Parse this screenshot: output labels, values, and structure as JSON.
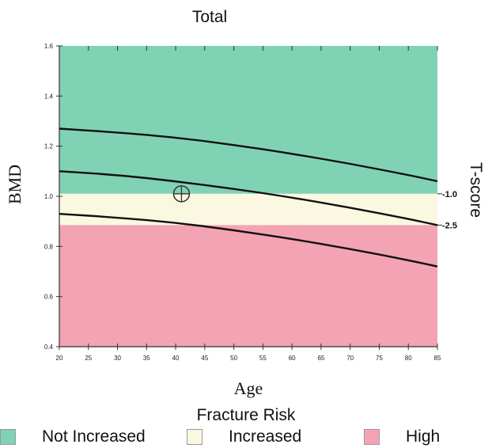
{
  "chart_data": {
    "type": "line",
    "title": "Total",
    "xlabel": "Age",
    "ylabel": "BMD",
    "y2label": "T-score",
    "xlim": [
      20,
      85
    ],
    "ylim": [
      0.4,
      1.6
    ],
    "x_ticks": [
      20,
      25,
      30,
      35,
      40,
      45,
      50,
      55,
      60,
      65,
      70,
      75,
      80,
      85
    ],
    "y_ticks": [
      "0.4",
      "0.6",
      "0.8",
      "1.0",
      "1.2",
      "1.4",
      "1.6"
    ],
    "bands": [
      {
        "label": "Not Increased",
        "from": 1.01,
        "to": 1.6,
        "color": "#7fd3b4"
      },
      {
        "label": "Increased",
        "from": 0.885,
        "to": 1.01,
        "color": "#fbf8e2"
      },
      {
        "label": "High",
        "from": 0.4,
        "to": 0.885,
        "color": "#f4a3b4"
      }
    ],
    "tscore_labels": [
      {
        "label": "-1.0",
        "y": 1.01
      },
      {
        "label": "-2.5",
        "y": 0.885
      }
    ],
    "series": [
      {
        "x": [
          20,
          30,
          40,
          50,
          60,
          70,
          80,
          85
        ],
        "values": [
          1.27,
          1.255,
          1.235,
          1.205,
          1.17,
          1.13,
          1.085,
          1.06
        ]
      },
      {
        "x": [
          20,
          30,
          40,
          50,
          60,
          70,
          80,
          85
        ],
        "values": [
          1.1,
          1.085,
          1.06,
          1.03,
          0.995,
          0.955,
          0.91,
          0.885
        ]
      },
      {
        "x": [
          20,
          30,
          40,
          50,
          60,
          70,
          80,
          85
        ],
        "values": [
          0.93,
          0.915,
          0.895,
          0.865,
          0.83,
          0.79,
          0.745,
          0.72
        ]
      }
    ],
    "marker": {
      "x": 41,
      "y": 1.01
    },
    "grid": false,
    "colors": {
      "line": "#111111",
      "axis": "#333333"
    }
  },
  "legend": {
    "title": "Fracture Risk",
    "items": [
      {
        "label": "Not Increased",
        "color": "#7fd3b4"
      },
      {
        "label": "Increased",
        "color": "#fbf8e2"
      },
      {
        "label": "High",
        "color": "#f4a3b4"
      }
    ]
  }
}
